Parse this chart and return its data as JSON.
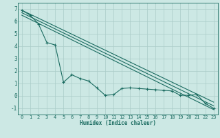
{
  "xlabel": "Humidex (Indice chaleur)",
  "bg_color": "#cce8e4",
  "grid_color": "#aaccc8",
  "line_color": "#1a6b60",
  "xlim": [
    -0.5,
    23.5
  ],
  "ylim": [
    -1.5,
    7.5
  ],
  "yticks": [
    -1,
    0,
    1,
    2,
    3,
    4,
    5,
    6,
    7
  ],
  "xticks": [
    0,
    1,
    2,
    3,
    4,
    5,
    6,
    7,
    8,
    9,
    10,
    11,
    12,
    13,
    14,
    15,
    16,
    17,
    18,
    19,
    20,
    21,
    22,
    23
  ],
  "jagged_x": [
    0,
    1,
    2,
    3,
    4,
    5,
    6,
    7,
    8,
    9,
    10,
    11,
    12,
    13,
    14,
    15,
    16,
    17,
    18,
    19,
    20,
    21,
    22,
    23
  ],
  "jagged_y": [
    6.9,
    6.5,
    5.8,
    4.3,
    4.1,
    1.1,
    1.7,
    1.4,
    1.2,
    0.65,
    0.05,
    0.1,
    0.6,
    0.65,
    0.6,
    0.55,
    0.5,
    0.45,
    0.4,
    0.05,
    0.05,
    0.1,
    -0.6,
    -1.0
  ],
  "trend1_x": [
    0,
    23
  ],
  "trend1_y": [
    6.9,
    -0.5
  ],
  "trend2_x": [
    0,
    23
  ],
  "trend2_y": [
    6.7,
    -0.8
  ],
  "trend3_x": [
    0,
    23
  ],
  "trend3_y": [
    6.5,
    -1.1
  ],
  "xlabel_fontsize": 5.5,
  "tick_fontsize": 5.0
}
